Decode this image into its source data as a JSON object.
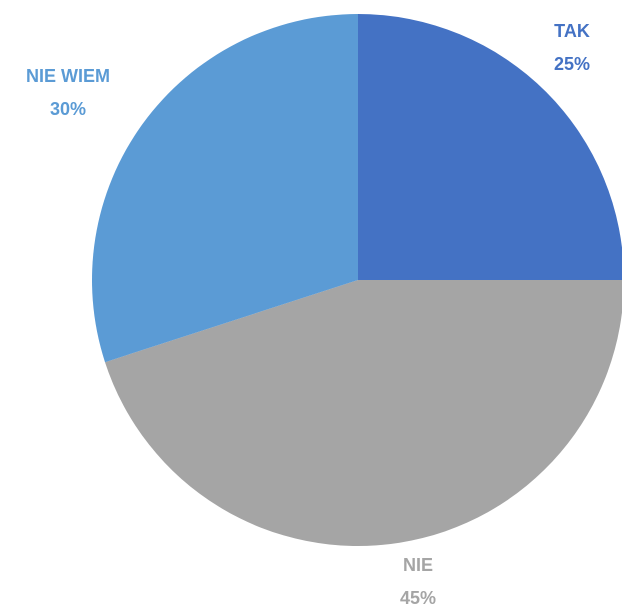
{
  "chart_data": {
    "type": "pie",
    "categories": [
      "TAK",
      "NIE",
      "NIE WIEM"
    ],
    "values": [
      25,
      45,
      30
    ],
    "value_labels": [
      "25%",
      "45%",
      "30%"
    ],
    "colors": [
      "#4472c4",
      "#a5a5a5",
      "#5b9bd5"
    ]
  }
}
